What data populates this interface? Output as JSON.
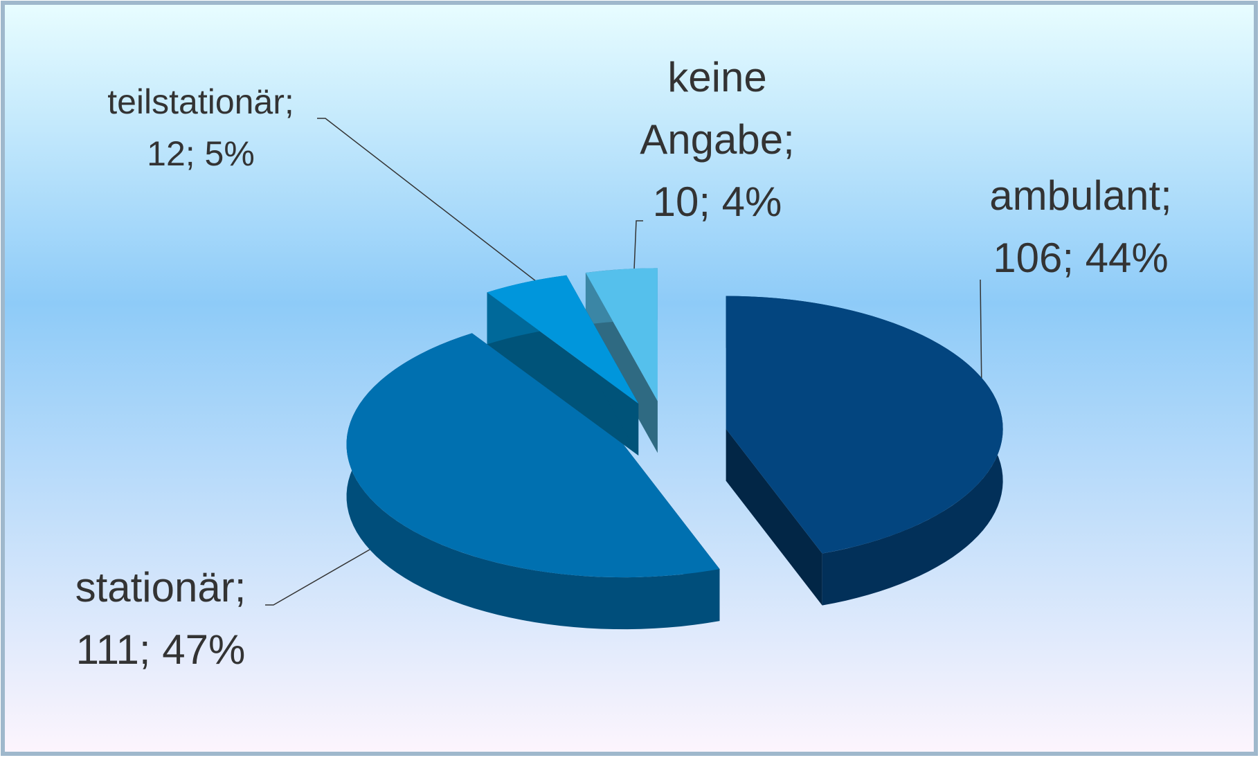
{
  "chart_data": {
    "type": "pie3d",
    "categories": [
      "ambulant;",
      "stationär;",
      "teilstationär;",
      "keine Angabe;"
    ],
    "values": [
      106,
      111,
      12,
      10
    ],
    "value_labels": [
      "106; 44%",
      "111; 47%",
      "12; 5%",
      "10; 4%"
    ],
    "colors": [
      "#03457f",
      "#0070b0",
      "#0096dc",
      "#55c0ec"
    ]
  }
}
